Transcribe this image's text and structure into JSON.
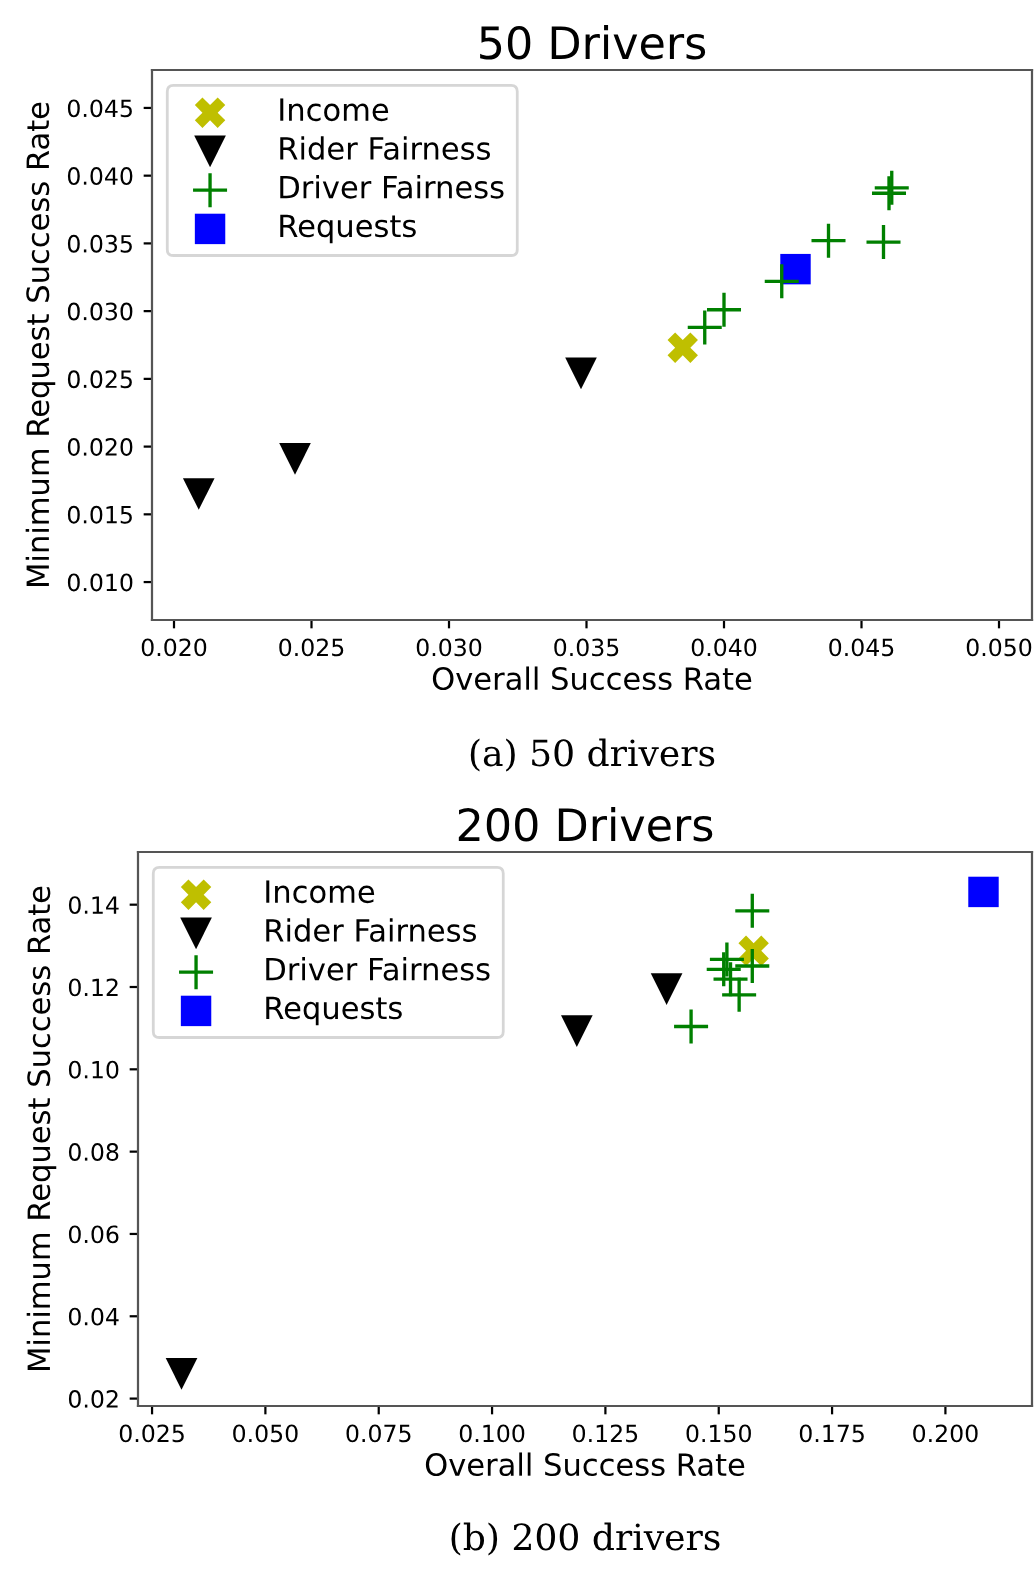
{
  "chart_data": [
    {
      "type": "scatter",
      "title": "50 Drivers",
      "xlabel": "Overall Success Rate",
      "ylabel": "Minimum Request Success Rate",
      "xlim": [
        0.0192,
        0.0512
      ],
      "xticks": [
        {
          "value": 0.02,
          "label": "0.020"
        },
        {
          "value": 0.025,
          "label": "0.025"
        },
        {
          "value": 0.03,
          "label": "0.030"
        },
        {
          "value": 0.035,
          "label": "0.035"
        },
        {
          "value": 0.04,
          "label": "0.040"
        },
        {
          "value": 0.045,
          "label": "0.045"
        },
        {
          "value": 0.05,
          "label": "0.050"
        }
      ],
      "ylim": [
        0.0072,
        0.0478
      ],
      "yticks": [
        {
          "value": 0.01,
          "label": "0.010"
        },
        {
          "value": 0.015,
          "label": "0.015"
        },
        {
          "value": 0.02,
          "label": "0.020"
        },
        {
          "value": 0.025,
          "label": "0.025"
        },
        {
          "value": 0.03,
          "label": "0.030"
        },
        {
          "value": 0.035,
          "label": "0.035"
        },
        {
          "value": 0.04,
          "label": "0.040"
        },
        {
          "value": 0.045,
          "label": "0.045"
        }
      ],
      "grid": false,
      "legend": "top left",
      "series": [
        {
          "name": "Income",
          "color": "#bfbf00",
          "marker": "cross",
          "x": [
            0.0385
          ],
          "values": [
            0.0273
          ]
        },
        {
          "name": "Rider Fairness",
          "color": "#000000",
          "marker": "triangle",
          "x": [
            0.0209,
            0.0244,
            0.0348
          ],
          "values": [
            0.0165,
            0.0191,
            0.0254
          ]
        },
        {
          "name": "Driver Fairness",
          "color": "#008000",
          "marker": "plus",
          "x": [
            0.0393,
            0.04,
            0.0421,
            0.0438,
            0.0458,
            0.046,
            0.0461
          ],
          "values": [
            0.0288,
            0.0301,
            0.0322,
            0.0352,
            0.0351,
            0.0387,
            0.0391
          ]
        },
        {
          "name": "Requests",
          "color": "#0000ff",
          "marker": "square",
          "x": [
            0.0426
          ],
          "values": [
            0.0331
          ]
        }
      ],
      "annotations": [
        "(a) 50 drivers"
      ]
    },
    {
      "type": "scatter",
      "title": "200 Drivers",
      "xlabel": "Overall Success Rate",
      "ylabel": "Minimum Request Success Rate",
      "xlim": [
        0.0219,
        0.2191
      ],
      "xticks": [
        {
          "value": 0.025,
          "label": "0.025"
        },
        {
          "value": 0.05,
          "label": "0.050"
        },
        {
          "value": 0.075,
          "label": "0.075"
        },
        {
          "value": 0.1,
          "label": "0.100"
        },
        {
          "value": 0.125,
          "label": "0.125"
        },
        {
          "value": 0.15,
          "label": "0.150"
        },
        {
          "value": 0.175,
          "label": "0.175"
        },
        {
          "value": 0.2,
          "label": "0.200"
        }
      ],
      "ylim": [
        0.0182,
        0.1528
      ],
      "yticks": [
        0.02,
        0.04,
        0.06,
        0.08,
        {
          "value": 0.1,
          "label": "0.10"
        },
        0.12,
        0.14
      ],
      "grid": false,
      "legend": "top left",
      "series": [
        {
          "name": "Income",
          "color": "#bfbf00",
          "marker": "cross",
          "x": [
            0.1577
          ],
          "values": [
            0.1288
          ]
        },
        {
          "name": "Rider Fairness",
          "color": "#000000",
          "marker": "triangle",
          "x": [
            0.0315,
            0.1187,
            0.1385
          ],
          "values": [
            0.026,
            0.1093,
            0.1195
          ]
        },
        {
          "name": "Driver Fairness",
          "color": "#008000",
          "marker": "plus",
          "x": [
            0.1574,
            0.1518,
            0.1511,
            0.1526,
            0.1545,
            0.1574,
            0.1439
          ],
          "values": [
            0.1385,
            0.1267,
            0.1243,
            0.1219,
            0.1181,
            0.1251,
            0.1104
          ]
        },
        {
          "name": "Requests",
          "color": "#0000ff",
          "marker": "square",
          "x": [
            0.2084
          ],
          "values": [
            0.1431
          ]
        }
      ],
      "annotations": [
        "(b) 200 drivers"
      ]
    }
  ]
}
